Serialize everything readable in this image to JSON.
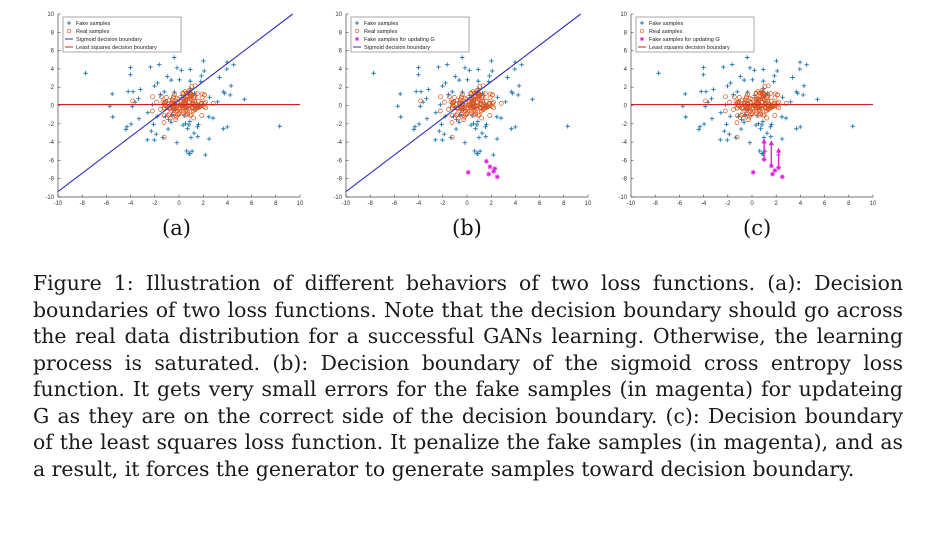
{
  "figure": {
    "caption": "Figure 1: Illustration of different behaviors of two loss functions. (a): Decision boundaries of two loss functions. Note that the decision boundary should go across the real data distribution for a successful GANs learning. Otherwise, the learning process is saturated. (b): Decision boundary of the sigmoid cross entropy loss function. It gets very small errors for the fake samples (in magenta) for updateing G as they are on the correct side of the decision boundary. (c): Decision boundary of the least squares loss function. It penalize the fake samples (in magenta), and as a result, it forces the generator to generate samples toward decision boundary."
  },
  "colors": {
    "fake": "#1f77b4",
    "real": "#d9541e",
    "magenta": "#e020e0",
    "sigmoid": "#3030c0",
    "lsq": "#d02020"
  },
  "chart_data": [
    {
      "type": "scatter",
      "panel_label": "(a)",
      "xlim": [
        -10,
        10
      ],
      "ylim": [
        -10,
        10
      ],
      "xticks": [
        "-10",
        "-8",
        "-6",
        "-4",
        "-2",
        "0",
        "2",
        "4",
        "6",
        "8",
        "10"
      ],
      "yticks": [
        "10",
        "8",
        "6",
        "4",
        "2",
        "0",
        "-2",
        "-4",
        "-6",
        "-8",
        "-10"
      ],
      "legend": [
        "Fake samples",
        "Real samples",
        "Sigmoid decision boundary",
        "Least squares decision boundary"
      ],
      "lines": {
        "sigmoid": [
          [
            -10,
            -9.4
          ],
          [
            9.4,
            10
          ]
        ],
        "lsq": [
          [
            -10,
            0.1
          ],
          [
            10,
            0.1
          ]
        ]
      },
      "magenta": [],
      "arrows": []
    },
    {
      "type": "scatter",
      "panel_label": "(b)",
      "xlim": [
        -10,
        10
      ],
      "ylim": [
        -10,
        10
      ],
      "xticks": [
        "-10",
        "-8",
        "-6",
        "-4",
        "-2",
        "0",
        "2",
        "4",
        "6",
        "8",
        "10"
      ],
      "yticks": [
        "10",
        "8",
        "6",
        "4",
        "2",
        "0",
        "-2",
        "-4",
        "-6",
        "-8",
        "-10"
      ],
      "legend": [
        "Fake samples",
        "Real samples",
        "Fake samples for updating G",
        "Sigmoid decision boundary"
      ],
      "lines": {
        "sigmoid": [
          [
            -10,
            -9.4
          ],
          [
            9.4,
            10
          ]
        ]
      },
      "magenta": [
        [
          0.1,
          -7.3
        ],
        [
          1.6,
          -6.1
        ],
        [
          1.9,
          -6.7
        ],
        [
          2.2,
          -7.2
        ],
        [
          2.5,
          -7.8
        ],
        [
          1.8,
          -7.5
        ],
        [
          2.3,
          -6.9
        ]
      ],
      "arrows": []
    },
    {
      "type": "scatter",
      "panel_label": "(c)",
      "xlim": [
        -10,
        10
      ],
      "ylim": [
        -10,
        10
      ],
      "xticks": [
        "-10",
        "-8",
        "-6",
        "-4",
        "-2",
        "0",
        "2",
        "4",
        "6",
        "8",
        "10"
      ],
      "yticks": [
        "10",
        "8",
        "6",
        "4",
        "2",
        "0",
        "-2",
        "-4",
        "-6",
        "-8",
        "-10"
      ],
      "legend": [
        "Fake samples",
        "Real samples",
        "Fake samples for updating G",
        "Least squares decision boundary"
      ],
      "lines": {
        "lsq": [
          [
            -10,
            0.1
          ],
          [
            10,
            0.1
          ]
        ]
      },
      "magenta": [
        [
          0.1,
          -7.3
        ],
        [
          1.0,
          -5.9
        ],
        [
          1.6,
          -6.6
        ],
        [
          1.9,
          -7.1
        ],
        [
          2.2,
          -6.8
        ],
        [
          2.5,
          -7.8
        ],
        [
          1.7,
          -7.5
        ]
      ],
      "arrows": [
        [
          1.0,
          -5.9,
          1.0,
          -3.6
        ],
        [
          1.6,
          -6.6,
          1.6,
          -3.8
        ],
        [
          2.2,
          -6.8,
          2.2,
          -4.6
        ]
      ]
    }
  ]
}
